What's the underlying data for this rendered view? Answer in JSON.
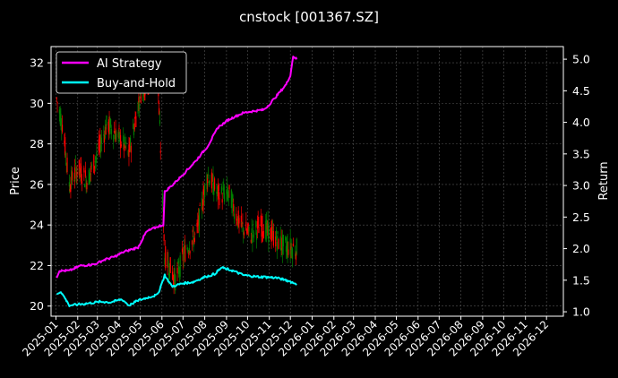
{
  "chart_data": {
    "type": "line",
    "title": "cnstock [001367.SZ]",
    "ylabel_left": "Price",
    "ylabel_right": "Return",
    "xlabel": "",
    "x_ticks": [
      "2025-01",
      "2025-02",
      "2025-03",
      "2025-04",
      "2025-05",
      "2025-06",
      "2025-07",
      "2025-08",
      "2025-09",
      "2025-10",
      "2025-11",
      "2025-12",
      "2026-01",
      "2026-02",
      "2026-03",
      "2026-04",
      "2026-05",
      "2026-06",
      "2026-07",
      "2026-08",
      "2026-09",
      "2026-10",
      "2026-11",
      "2026-12"
    ],
    "xlim": [
      "2024-12-25",
      "2026-12-25"
    ],
    "y_left_ticks": [
      20,
      22,
      24,
      26,
      28,
      30,
      32
    ],
    "y_left_lim": [
      19.5,
      32.8
    ],
    "y_right_ticks": [
      1.0,
      1.5,
      2.0,
      2.5,
      3.0,
      3.5,
      4.0,
      4.5,
      5.0
    ],
    "y_right_lim": [
      0.93,
      5.2
    ],
    "grid": true,
    "legend_position": "top-left",
    "colors": {
      "background": "#000000",
      "ai_strategy": "#ff00ff",
      "buy_hold": "#00ffff",
      "candle_up": "#ff0000",
      "candle_down": "#008000",
      "grid": "#555555"
    },
    "series": [
      {
        "name": "AI Strategy",
        "axis": "right",
        "x": [
          "2025-01-02",
          "2025-01-06",
          "2025-01-20",
          "2025-02-05",
          "2025-02-25",
          "2025-03-10",
          "2025-03-25",
          "2025-04-08",
          "2025-04-28",
          "2025-05-10",
          "2025-05-26",
          "2025-06-03",
          "2025-06-05",
          "2025-06-20",
          "2025-07-05",
          "2025-07-20",
          "2025-08-05",
          "2025-08-20",
          "2025-09-05",
          "2025-09-25",
          "2025-10-10",
          "2025-10-25",
          "2025-11-10",
          "2025-11-25",
          "2025-12-01",
          "2025-12-05",
          "2025-12-10"
        ],
        "values": [
          1.55,
          1.65,
          1.65,
          1.73,
          1.75,
          1.82,
          1.87,
          1.95,
          2.02,
          2.27,
          2.35,
          2.38,
          2.9,
          3.05,
          3.22,
          3.4,
          3.62,
          3.92,
          4.05,
          4.15,
          4.18,
          4.2,
          4.4,
          4.6,
          4.75,
          5.05,
          5.0
        ]
      },
      {
        "name": "Buy-and-Hold",
        "axis": "right",
        "x": [
          "2025-01-02",
          "2025-01-08",
          "2025-01-20",
          "2025-02-05",
          "2025-02-20",
          "2025-03-05",
          "2025-03-20",
          "2025-04-05",
          "2025-04-15",
          "2025-04-28",
          "2025-05-10",
          "2025-05-26",
          "2025-06-05",
          "2025-06-15",
          "2025-07-01",
          "2025-07-15",
          "2025-08-01",
          "2025-08-15",
          "2025-08-25",
          "2025-09-10",
          "2025-09-25",
          "2025-10-10",
          "2025-10-25",
          "2025-11-10",
          "2025-11-25",
          "2025-12-10"
        ],
        "values": [
          1.28,
          1.32,
          1.1,
          1.12,
          1.14,
          1.16,
          1.15,
          1.2,
          1.1,
          1.18,
          1.22,
          1.27,
          1.58,
          1.4,
          1.45,
          1.47,
          1.55,
          1.6,
          1.7,
          1.65,
          1.58,
          1.56,
          1.55,
          1.54,
          1.5,
          1.44
        ]
      },
      {
        "name": "Price",
        "axis": "left",
        "x": [
          "2025-01-02",
          "2025-01-10",
          "2025-01-20",
          "2025-02-01",
          "2025-02-15",
          "2025-03-01",
          "2025-03-15",
          "2025-04-01",
          "2025-04-15",
          "2025-05-01",
          "2025-05-10",
          "2025-05-26",
          "2025-06-05",
          "2025-06-20",
          "2025-07-05",
          "2025-07-20",
          "2025-08-05",
          "2025-08-20",
          "2025-09-05",
          "2025-09-20",
          "2025-10-05",
          "2025-10-20",
          "2025-11-05",
          "2025-11-20",
          "2025-12-10"
        ],
        "values": [
          30.2,
          29.0,
          26.0,
          26.8,
          26.2,
          27.5,
          29.0,
          28.3,
          27.5,
          30.5,
          31.0,
          31.3,
          22.5,
          21.3,
          22.8,
          23.5,
          26.5,
          25.5,
          25.5,
          24.0,
          23.5,
          24.0,
          23.5,
          23.0,
          22.8
        ]
      }
    ]
  }
}
